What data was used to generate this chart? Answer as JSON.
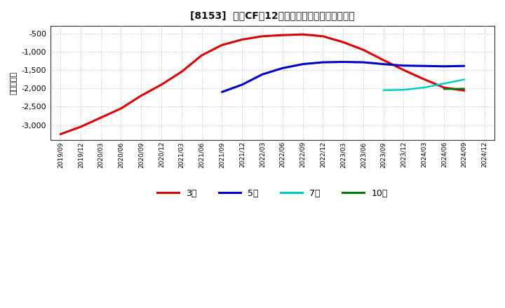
{
  "title": "[8153]  投賄CFだ12か月移動合計の平均値の推移",
  "ylabel": "（百万円）",
  "background_color": "#ffffff",
  "plot_background": "#ffffff",
  "ylim": [
    -3400,
    -300
  ],
  "yticks": [
    -3000,
    -2500,
    -2000,
    -1500,
    -1000,
    -500
  ],
  "series": {
    "3年": {
      "color": "#dd0000",
      "data": [
        [
          "2019/09",
          -3250
        ],
        [
          "2019/12",
          -3050
        ],
        [
          "2020/03",
          -2800
        ],
        [
          "2020/06",
          -2550
        ],
        [
          "2020/09",
          -2200
        ],
        [
          "2020/12",
          -1900
        ],
        [
          "2021/03",
          -1550
        ],
        [
          "2021/06",
          -1100
        ],
        [
          "2021/09",
          -820
        ],
        [
          "2021/12",
          -670
        ],
        [
          "2022/03",
          -580
        ],
        [
          "2022/06",
          -550
        ],
        [
          "2022/09",
          -530
        ],
        [
          "2022/12",
          -580
        ],
        [
          "2023/03",
          -740
        ],
        [
          "2023/06",
          -950
        ],
        [
          "2023/09",
          -1230
        ],
        [
          "2023/12",
          -1500
        ],
        [
          "2024/03",
          -1750
        ],
        [
          "2024/06",
          -1980
        ],
        [
          "2024/09",
          -2060
        ]
      ]
    },
    "5年": {
      "color": "#0000cc",
      "data": [
        [
          "2021/09",
          -2100
        ],
        [
          "2021/12",
          -1900
        ],
        [
          "2022/03",
          -1620
        ],
        [
          "2022/06",
          -1450
        ],
        [
          "2022/09",
          -1340
        ],
        [
          "2022/12",
          -1290
        ],
        [
          "2023/03",
          -1280
        ],
        [
          "2023/06",
          -1290
        ],
        [
          "2023/09",
          -1340
        ],
        [
          "2023/12",
          -1380
        ],
        [
          "2024/03",
          -1390
        ],
        [
          "2024/06",
          -1400
        ],
        [
          "2024/09",
          -1390
        ]
      ]
    },
    "7年": {
      "color": "#00cccc",
      "data": [
        [
          "2023/09",
          -2050
        ],
        [
          "2023/12",
          -2040
        ],
        [
          "2024/03",
          -1980
        ],
        [
          "2024/06",
          -1870
        ],
        [
          "2024/09",
          -1760
        ]
      ]
    },
    "10年": {
      "color": "#007700",
      "data": [
        [
          "2024/06",
          -2020
        ],
        [
          "2024/09",
          -2010
        ]
      ]
    }
  },
  "xtick_labels": [
    "2019/09",
    "2019/12",
    "2020/03",
    "2020/06",
    "2020/09",
    "2020/12",
    "2021/03",
    "2021/06",
    "2021/09",
    "2021/12",
    "2022/03",
    "2022/06",
    "2022/09",
    "2022/12",
    "2023/03",
    "2023/06",
    "2023/09",
    "2023/12",
    "2024/03",
    "2024/06",
    "2024/09",
    "2024/12"
  ],
  "legend_labels": [
    "3年",
    "5年",
    "7年",
    "10年"
  ],
  "legend_colors": [
    "#dd0000",
    "#0000cc",
    "#00cccc",
    "#007700"
  ]
}
